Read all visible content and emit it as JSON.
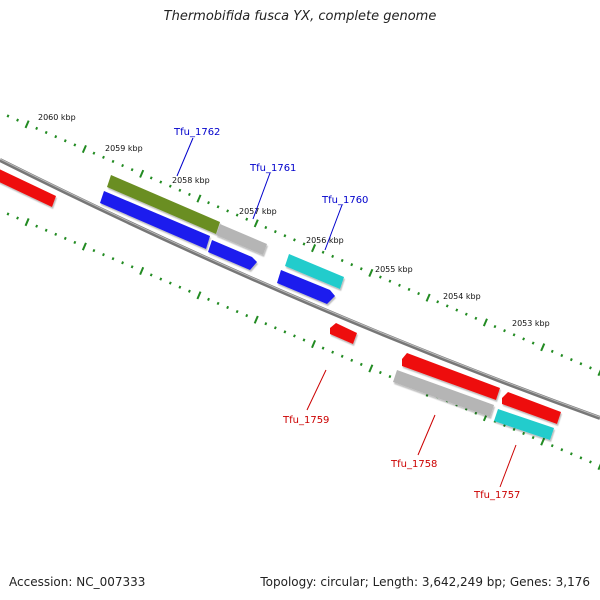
{
  "title": "Thermobifida fusca YX, complete genome",
  "footer": {
    "accession": "Accession: NC_007333",
    "summary": "Topology: circular; Length: 3,642,249 bp; Genes: 3,176"
  },
  "colors": {
    "backbone": "#777777",
    "ticks": "#228B22",
    "forward_label": "#0000cc",
    "reverse_label": "#cc0000",
    "red": "#ee1111",
    "blue": "#1a1aee",
    "olive": "#6b8e23",
    "gray": "#b5b5b5",
    "cyan": "#22cccc"
  },
  "scale": {
    "unit": "kbp",
    "labels": [
      "2060 kbp",
      "2059 kbp",
      "2058 kbp",
      "2057 kbp",
      "2056 kbp",
      "2055 kbp",
      "2054 kbp",
      "2053 kbp"
    ]
  },
  "genes": [
    {
      "label": "Tfu_1762",
      "strand": "forward",
      "color": "olive"
    },
    {
      "label": "Tfu_1761",
      "strand": "forward",
      "color": "gray"
    },
    {
      "label": "Tfu_1760",
      "strand": "forward",
      "color": "cyan"
    },
    {
      "label": "Tfu_1759",
      "strand": "reverse",
      "color": "red"
    },
    {
      "label": "Tfu_1758",
      "strand": "reverse",
      "color": "gray"
    },
    {
      "label": "Tfu_1757",
      "strand": "reverse",
      "color": "cyan"
    }
  ]
}
